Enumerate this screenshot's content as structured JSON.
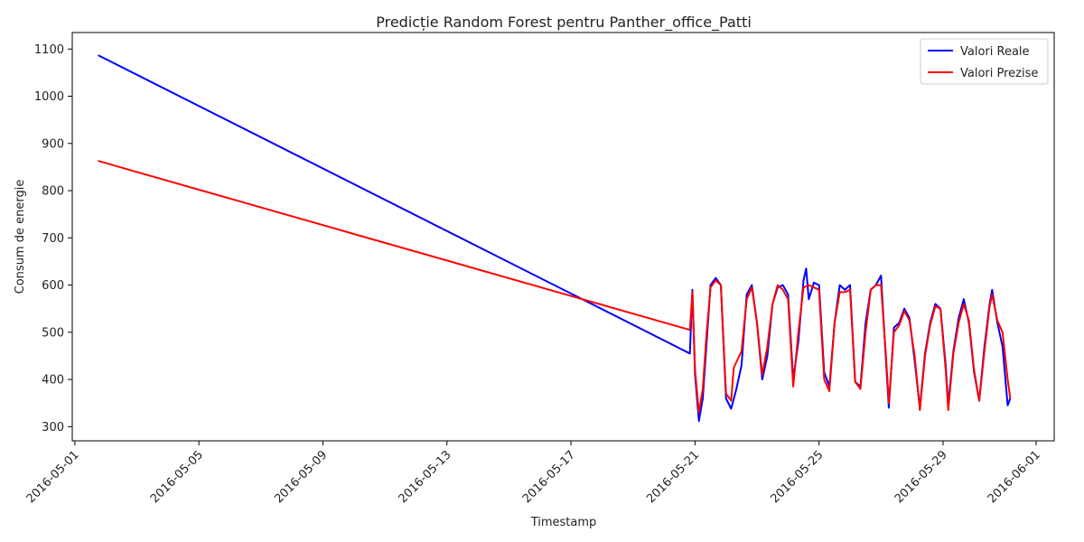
{
  "chart_data": {
    "type": "line",
    "title": "Predicție Random Forest pentru Panther_office_Patti",
    "xlabel": "Timestamp",
    "ylabel": "Consum de energie",
    "xlim": [
      "2016-04-30T22:00",
      "2016-06-01T14:00"
    ],
    "ylim": [
      270,
      1135
    ],
    "x_ticks": [
      "2016-05-01",
      "2016-05-05",
      "2016-05-09",
      "2016-05-13",
      "2016-05-17",
      "2016-05-21",
      "2016-05-25",
      "2016-05-29",
      "2016-06-01"
    ],
    "y_ticks": [
      300,
      400,
      500,
      600,
      700,
      800,
      900,
      1000,
      1100
    ],
    "grid": false,
    "legend_position": "top-right",
    "series": [
      {
        "name": "Valori Reale",
        "color": "#0000ff",
        "points": [
          [
            "2016-05-01T18:00",
            1087
          ],
          [
            "2016-05-20T20:00",
            455
          ],
          [
            "2016-05-20T22:00",
            590
          ],
          [
            "2016-05-21T00:00",
            410
          ],
          [
            "2016-05-21T03:00",
            312
          ],
          [
            "2016-05-21T06:00",
            360
          ],
          [
            "2016-05-21T09:00",
            480
          ],
          [
            "2016-05-21T12:00",
            600
          ],
          [
            "2016-05-21T16:00",
            615
          ],
          [
            "2016-05-21T20:00",
            600
          ],
          [
            "2016-05-22T00:00",
            360
          ],
          [
            "2016-05-22T04:00",
            338
          ],
          [
            "2016-05-22T08:00",
            380
          ],
          [
            "2016-05-22T12:00",
            430
          ],
          [
            "2016-05-22T16:00",
            580
          ],
          [
            "2016-05-22T20:00",
            600
          ],
          [
            "2016-05-23T00:00",
            520
          ],
          [
            "2016-05-23T04:00",
            400
          ],
          [
            "2016-05-23T08:00",
            450
          ],
          [
            "2016-05-23T12:00",
            560
          ],
          [
            "2016-05-23T16:00",
            595
          ],
          [
            "2016-05-23T20:00",
            600
          ],
          [
            "2016-05-24T00:00",
            580
          ],
          [
            "2016-05-24T04:00",
            400
          ],
          [
            "2016-05-24T08:00",
            480
          ],
          [
            "2016-05-24T12:00",
            610
          ],
          [
            "2016-05-24T14:00",
            635
          ],
          [
            "2016-05-24T16:00",
            570
          ],
          [
            "2016-05-24T20:00",
            605
          ],
          [
            "2016-05-25T00:00",
            600
          ],
          [
            "2016-05-25T04:00",
            415
          ],
          [
            "2016-05-25T08:00",
            385
          ],
          [
            "2016-05-25T12:00",
            520
          ],
          [
            "2016-05-25T16:00",
            600
          ],
          [
            "2016-05-25T20:00",
            590
          ],
          [
            "2016-05-26T00:00",
            600
          ],
          [
            "2016-05-26T04:00",
            395
          ],
          [
            "2016-05-26T08:00",
            385
          ],
          [
            "2016-05-26T12:00",
            520
          ],
          [
            "2016-05-26T16:00",
            590
          ],
          [
            "2016-05-26T20:00",
            600
          ],
          [
            "2016-05-27T00:00",
            620
          ],
          [
            "2016-05-27T04:00",
            430
          ],
          [
            "2016-05-27T06:00",
            340
          ],
          [
            "2016-05-27T10:00",
            510
          ],
          [
            "2016-05-27T14:00",
            520
          ],
          [
            "2016-05-27T18:00",
            550
          ],
          [
            "2016-05-27T22:00",
            530
          ],
          [
            "2016-05-28T02:00",
            440
          ],
          [
            "2016-05-28T06:00",
            340
          ],
          [
            "2016-05-28T10:00",
            455
          ],
          [
            "2016-05-28T14:00",
            520
          ],
          [
            "2016-05-28T18:00",
            560
          ],
          [
            "2016-05-28T22:00",
            550
          ],
          [
            "2016-05-29T02:00",
            430
          ],
          [
            "2016-05-29T04:00",
            345
          ],
          [
            "2016-05-29T08:00",
            460
          ],
          [
            "2016-05-29T12:00",
            530
          ],
          [
            "2016-05-29T16:00",
            570
          ],
          [
            "2016-05-29T20:00",
            520
          ],
          [
            "2016-05-30T00:00",
            415
          ],
          [
            "2016-05-30T04:00",
            355
          ],
          [
            "2016-05-30T08:00",
            470
          ],
          [
            "2016-05-30T12:00",
            560
          ],
          [
            "2016-05-30T14:00",
            590
          ],
          [
            "2016-05-30T18:00",
            520
          ],
          [
            "2016-05-30T22:00",
            470
          ],
          [
            "2016-05-31T02:00",
            345
          ],
          [
            "2016-05-31T04:00",
            360
          ]
        ]
      },
      {
        "name": "Valori Prezise",
        "color": "#ff0000",
        "points": [
          [
            "2016-05-01T18:00",
            863
          ],
          [
            "2016-05-20T20:00",
            505
          ],
          [
            "2016-05-20T22:00",
            585
          ],
          [
            "2016-05-21T00:00",
            420
          ],
          [
            "2016-05-21T03:00",
            330
          ],
          [
            "2016-05-21T06:00",
            380
          ],
          [
            "2016-05-21T09:00",
            500
          ],
          [
            "2016-05-21T12:00",
            595
          ],
          [
            "2016-05-21T16:00",
            610
          ],
          [
            "2016-05-21T20:00",
            600
          ],
          [
            "2016-05-22T00:00",
            370
          ],
          [
            "2016-05-22T04:00",
            355
          ],
          [
            "2016-05-22T06:00",
            425
          ],
          [
            "2016-05-22T12:00",
            460
          ],
          [
            "2016-05-22T16:00",
            570
          ],
          [
            "2016-05-22T20:00",
            595
          ],
          [
            "2016-05-23T00:00",
            520
          ],
          [
            "2016-05-23T04:00",
            410
          ],
          [
            "2016-05-23T08:00",
            470
          ],
          [
            "2016-05-23T12:00",
            560
          ],
          [
            "2016-05-23T16:00",
            600
          ],
          [
            "2016-05-23T20:00",
            590
          ],
          [
            "2016-05-24T00:00",
            570
          ],
          [
            "2016-05-24T04:00",
            385
          ],
          [
            "2016-05-24T08:00",
            500
          ],
          [
            "2016-05-24T12:00",
            595
          ],
          [
            "2016-05-24T16:00",
            600
          ],
          [
            "2016-05-24T20:00",
            595
          ],
          [
            "2016-05-25T00:00",
            590
          ],
          [
            "2016-05-25T04:00",
            400
          ],
          [
            "2016-05-25T08:00",
            375
          ],
          [
            "2016-05-25T12:00",
            520
          ],
          [
            "2016-05-25T16:00",
            585
          ],
          [
            "2016-05-25T20:00",
            585
          ],
          [
            "2016-05-26T00:00",
            590
          ],
          [
            "2016-05-26T04:00",
            395
          ],
          [
            "2016-05-26T08:00",
            380
          ],
          [
            "2016-05-26T12:00",
            500
          ],
          [
            "2016-05-26T16:00",
            590
          ],
          [
            "2016-05-26T20:00",
            600
          ],
          [
            "2016-05-27T00:00",
            600
          ],
          [
            "2016-05-27T04:00",
            440
          ],
          [
            "2016-05-27T06:00",
            350
          ],
          [
            "2016-05-27T10:00",
            500
          ],
          [
            "2016-05-27T14:00",
            515
          ],
          [
            "2016-05-27T18:00",
            545
          ],
          [
            "2016-05-27T22:00",
            525
          ],
          [
            "2016-05-28T02:00",
            450
          ],
          [
            "2016-05-28T06:00",
            335
          ],
          [
            "2016-05-28T10:00",
            450
          ],
          [
            "2016-05-28T14:00",
            515
          ],
          [
            "2016-05-28T18:00",
            555
          ],
          [
            "2016-05-28T22:00",
            550
          ],
          [
            "2016-05-29T02:00",
            420
          ],
          [
            "2016-05-29T04:00",
            335
          ],
          [
            "2016-05-29T08:00",
            455
          ],
          [
            "2016-05-29T12:00",
            520
          ],
          [
            "2016-05-29T16:00",
            560
          ],
          [
            "2016-05-29T20:00",
            525
          ],
          [
            "2016-05-30T00:00",
            420
          ],
          [
            "2016-05-30T04:00",
            355
          ],
          [
            "2016-05-30T08:00",
            460
          ],
          [
            "2016-05-30T12:00",
            555
          ],
          [
            "2016-05-30T14:00",
            580
          ],
          [
            "2016-05-30T18:00",
            525
          ],
          [
            "2016-05-30T22:00",
            500
          ],
          [
            "2016-05-31T02:00",
            400
          ],
          [
            "2016-05-31T04:00",
            360
          ]
        ]
      }
    ]
  }
}
